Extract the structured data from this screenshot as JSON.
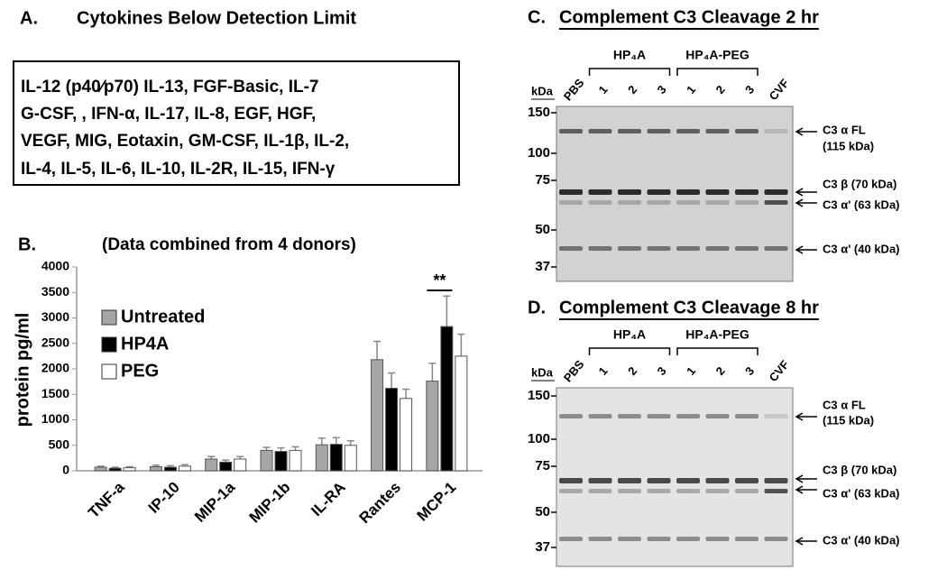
{
  "panel_a": {
    "label": "A.",
    "title": "Cytokines Below Detection Limit",
    "lines": [
      "IL-12 (p40⁄p70) IL-13, FGF-Basic, IL-7",
      "G-CSF, , IFN-α, IL-17, IL-8, EGF, HGF,",
      "VEGF, MIG, Eotaxin, GM-CSF, IL-1β, IL-2,",
      "IL-4, IL-5, IL-6, IL-10, IL-2R, IL-15, IFN-γ"
    ]
  },
  "chart_data": {
    "type": "bar",
    "label": "B.",
    "subtitle": "(Data combined from 4 donors)",
    "ylabel": "protein pg/ml",
    "annotation": "**",
    "categories": [
      "TNF-a",
      "IP-10",
      "MIP-1a",
      "MIP-1b",
      "IL-RA",
      "Rantes",
      "MCP-1"
    ],
    "series": [
      {
        "name": "Untreated",
        "color": "#a6a6a6",
        "values": [
          70,
          80,
          230,
          400,
          510,
          2180,
          1760
        ],
        "errors": [
          20,
          30,
          50,
          60,
          130,
          360,
          350
        ]
      },
      {
        "name": "HP4A",
        "color": "#000000",
        "values": [
          50,
          70,
          170,
          380,
          520,
          1620,
          2830
        ],
        "errors": [
          20,
          30,
          40,
          70,
          130,
          300,
          600
        ]
      },
      {
        "name": "PEG",
        "color": "#ffffff",
        "values": [
          60,
          90,
          230,
          400,
          500,
          1420,
          2250
        ],
        "errors": [
          20,
          30,
          50,
          70,
          90,
          180,
          430
        ]
      }
    ],
    "ylim": [
      0,
      4000
    ],
    "yticks": [
      0,
      500,
      1000,
      1500,
      2000,
      2500,
      3000,
      3500,
      4000
    ]
  },
  "gels": [
    {
      "label": "C.",
      "title": "Complement C3 Cleavage 2 hr",
      "unit": "kDa",
      "markers": [
        150,
        100,
        75,
        50,
        37
      ],
      "lanes": [
        "PBS",
        "1",
        "2",
        "3",
        "1",
        "2",
        "3",
        "CVF"
      ],
      "groups": [
        "HP₄A",
        "HP₄A-PEG"
      ],
      "bands": [
        "C3 α FL",
        "(115 kDa)",
        "C3 β (70 kDa)",
        "C3 α' (63 kDa)",
        "C3 α' (40 kDa)"
      ]
    },
    {
      "label": "D.",
      "title": "Complement C3 Cleavage 8 hr",
      "unit": "kDa",
      "markers": [
        150,
        100,
        75,
        50,
        37
      ],
      "lanes": [
        "PBS",
        "1",
        "2",
        "3",
        "1",
        "2",
        "3",
        "CVF"
      ],
      "groups": [
        "HP₄A",
        "HP₄A-PEG"
      ],
      "bands": [
        "C3 α FL",
        "(115 kDa)",
        "C3 β (70 kDa)",
        "C3 α' (63 kDa)",
        "C3 α' (40 kDa)"
      ]
    }
  ]
}
